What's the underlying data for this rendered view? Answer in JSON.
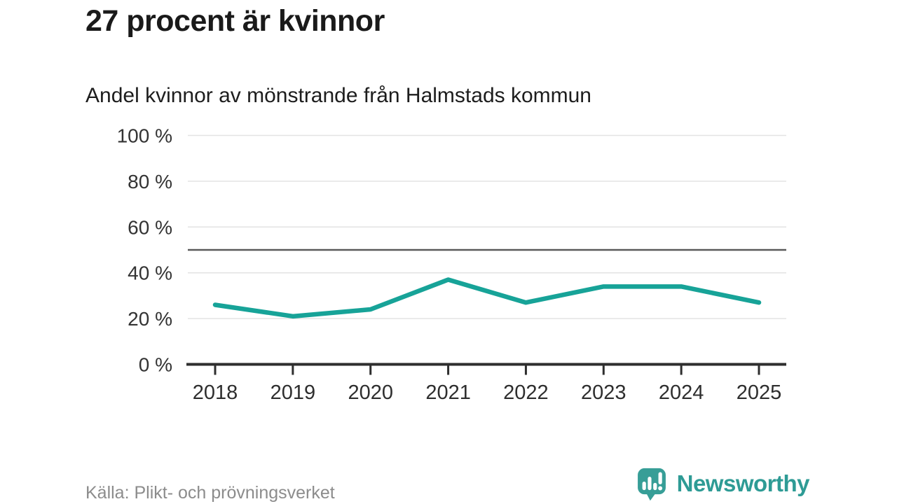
{
  "header": {
    "title": "27 procent är kvinnor",
    "subtitle": "Andel kvinnor av mönstrande från Halmstads kommun"
  },
  "chart_data": {
    "type": "line",
    "title": "27 procent är kvinnor",
    "subtitle": "Andel kvinnor av mönstrande från Halmstads kommun",
    "categories": [
      "2018",
      "2019",
      "2020",
      "2021",
      "2022",
      "2023",
      "2024",
      "2025"
    ],
    "series": [
      {
        "name": "Andel kvinnor",
        "values": [
          26,
          21,
          24,
          37,
          27,
          34,
          34,
          27
        ]
      }
    ],
    "xlabel": "",
    "ylabel": "",
    "ylim": [
      0,
      100
    ],
    "yticks": [
      0,
      20,
      40,
      60,
      80,
      100
    ],
    "ytick_suffix": " %",
    "grid": true,
    "legend_position": "none",
    "reference_line": 50,
    "line_color": "#17A398"
  },
  "footer": {
    "source": "Källa: Plikt- och prövningsverket",
    "brand": "Newsworthy"
  },
  "colors": {
    "accent_teal": "#17A398",
    "brand_teal": "#2E9B95",
    "logo_icon_teal": "#379E97",
    "gridline": "#e3e3e3",
    "reference_line": "#5a5a5a",
    "axis": "#2e2e2e",
    "axis_text": "#333333",
    "title_text": "#1a1a1a",
    "source_text": "#8c8c8c"
  }
}
